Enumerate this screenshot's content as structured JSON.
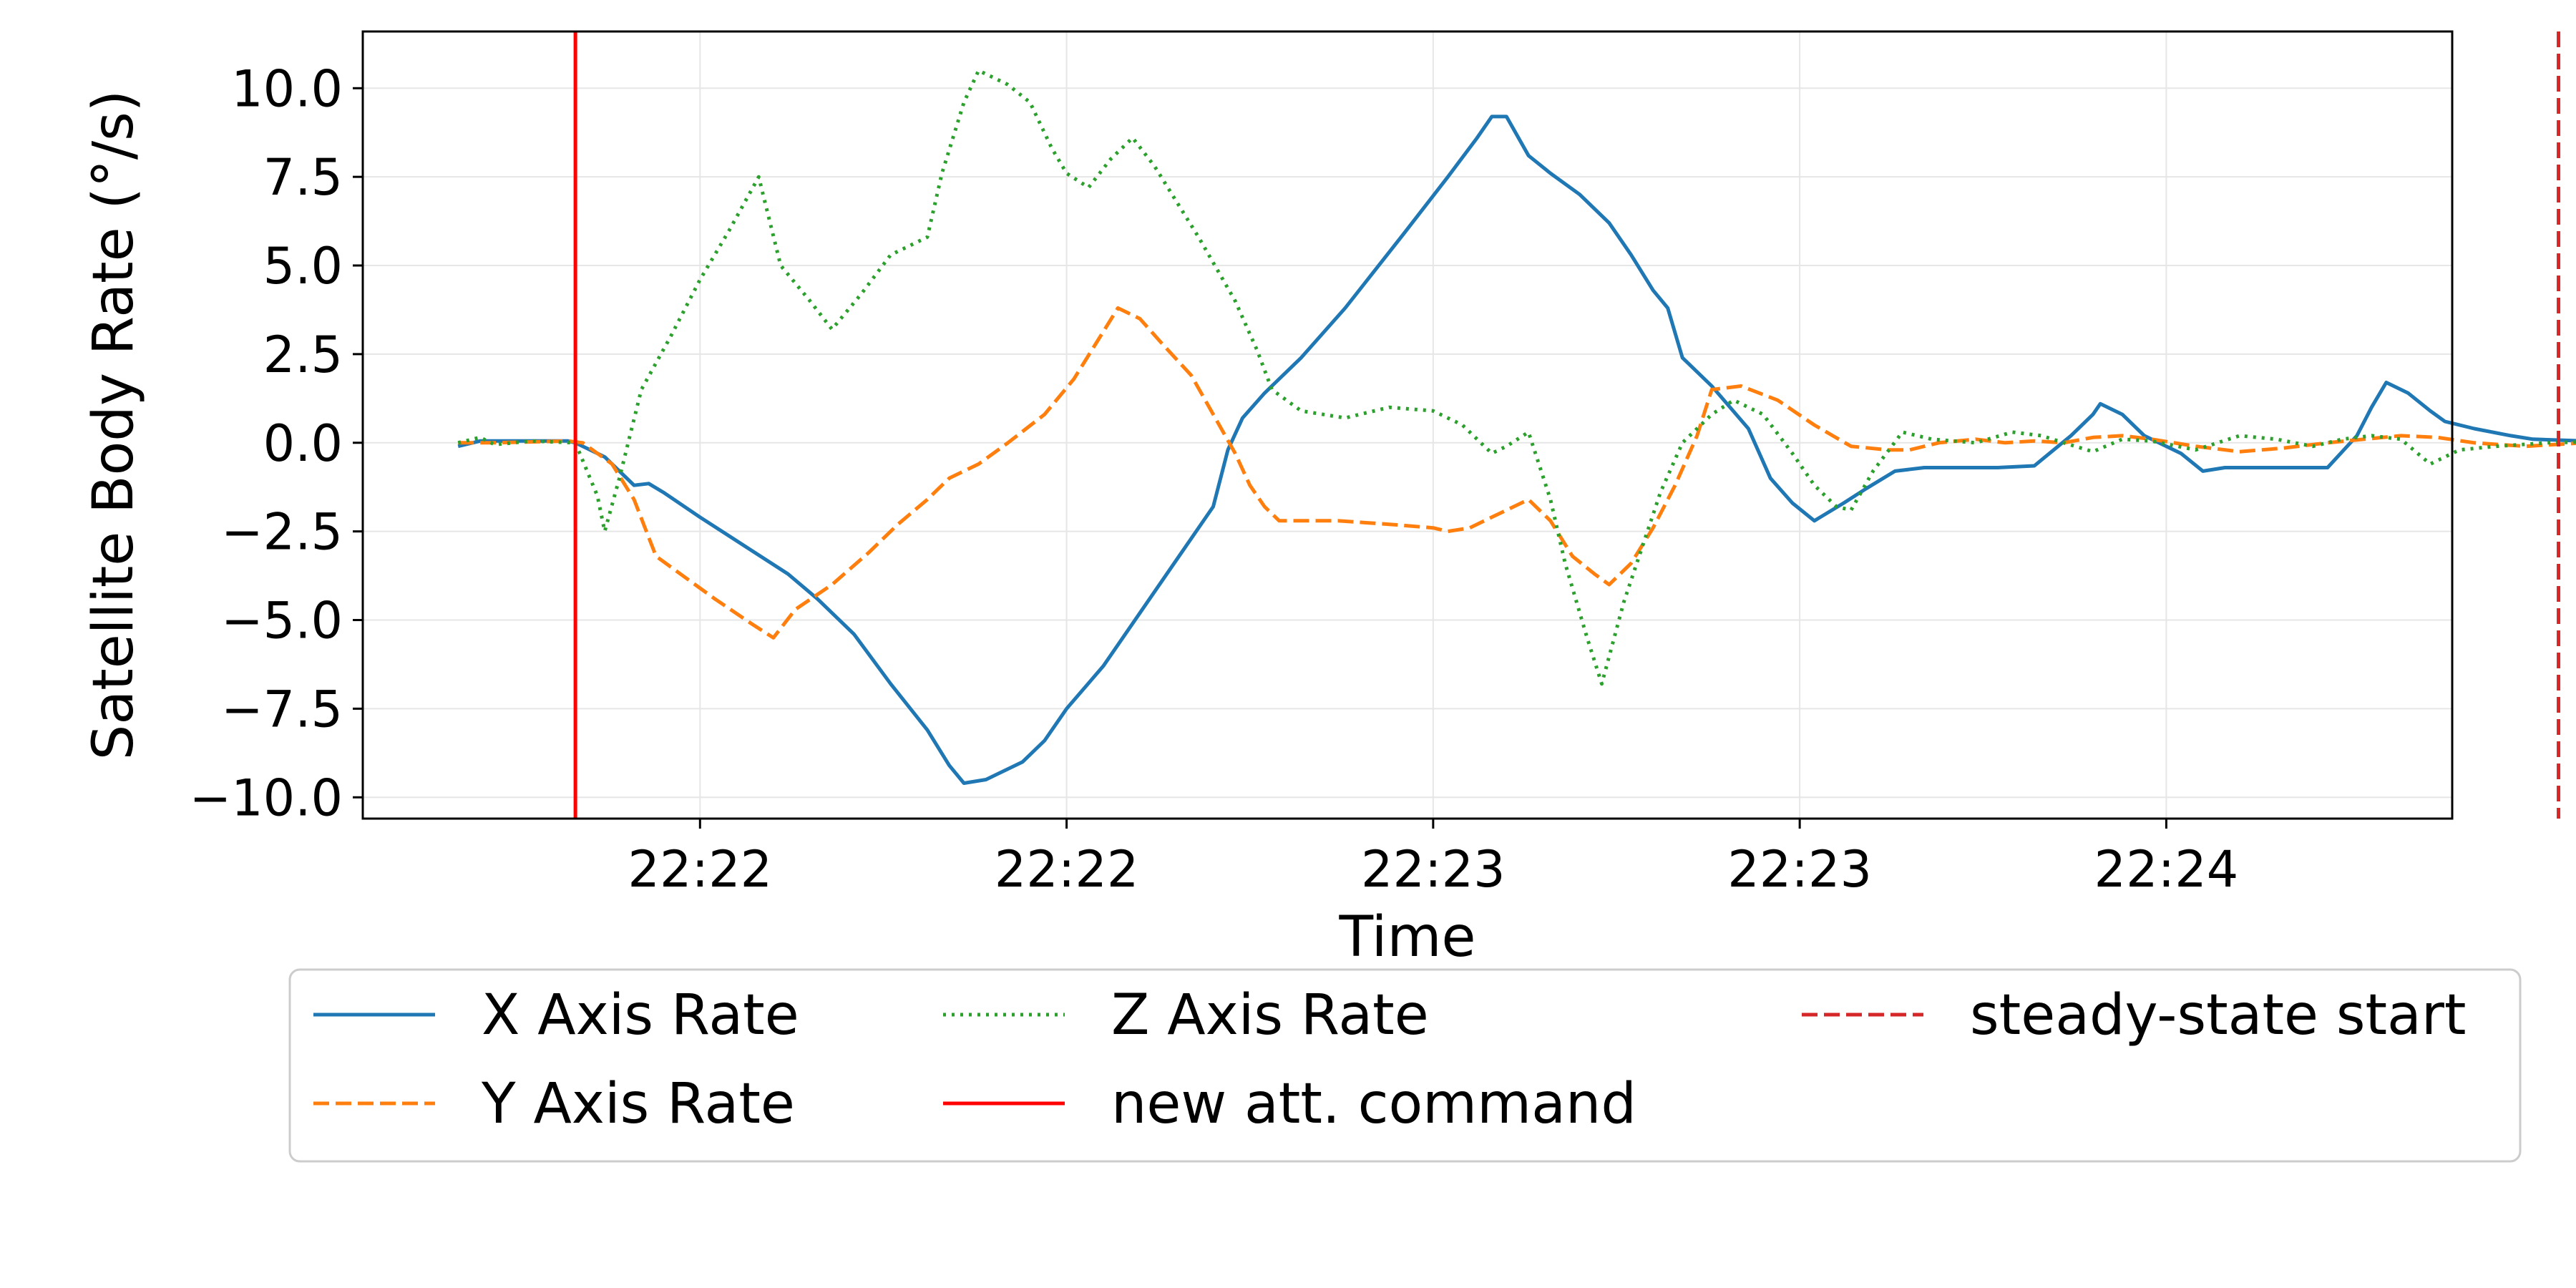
{
  "chart_data": {
    "type": "line",
    "xlabel": "Time",
    "ylabel": "Satellite Body Rate (°/s)",
    "xlim": [
      -80,
      2770
    ],
    "ylim": [
      -10.6,
      11.6
    ],
    "x_ticks": [
      {
        "x": 380,
        "label": "22:22"
      },
      {
        "x": 880,
        "label": "22:22"
      },
      {
        "x": 1380,
        "label": "22:23"
      },
      {
        "x": 1880,
        "label": "22:23"
      },
      {
        "x": 2380,
        "label": "22:24"
      }
    ],
    "y_ticks": [
      {
        "value": 10.0,
        "label": "10.0"
      },
      {
        "value": 7.5,
        "label": "7.5"
      },
      {
        "value": 5.0,
        "label": "5.0"
      },
      {
        "value": 2.5,
        "label": "2.5"
      },
      {
        "value": 0.0,
        "label": "0.0"
      },
      {
        "value": -2.5,
        "label": "−2.5"
      },
      {
        "value": -5.0,
        "label": "−5.0"
      },
      {
        "value": -7.5,
        "label": "−7.5"
      },
      {
        "value": -10.0,
        "label": "−10.0"
      }
    ],
    "grid": true,
    "legend_position": "bottom",
    "series": [
      {
        "name": "X Axis Rate",
        "color": "#1f77b4",
        "style": "solid",
        "points": [
          [
            50,
            -0.1
          ],
          [
            80,
            0.05
          ],
          [
            130,
            0.05
          ],
          [
            200,
            0.05
          ],
          [
            210,
            0.0
          ],
          [
            250,
            -0.4
          ],
          [
            290,
            -1.2
          ],
          [
            310,
            -1.15
          ],
          [
            330,
            -1.4
          ],
          [
            380,
            -2.1
          ],
          [
            440,
            -2.9
          ],
          [
            500,
            -3.7
          ],
          [
            540,
            -4.4
          ],
          [
            590,
            -5.4
          ],
          [
            640,
            -6.8
          ],
          [
            690,
            -8.1
          ],
          [
            720,
            -9.1
          ],
          [
            740,
            -9.6
          ],
          [
            770,
            -9.5
          ],
          [
            820,
            -9.0
          ],
          [
            850,
            -8.4
          ],
          [
            880,
            -7.5
          ],
          [
            930,
            -6.3
          ],
          [
            1080,
            -1.8
          ],
          [
            1100,
            -0.2
          ],
          [
            1120,
            0.7
          ],
          [
            1150,
            1.4
          ],
          [
            1200,
            2.4
          ],
          [
            1260,
            3.8
          ],
          [
            1340,
            5.9
          ],
          [
            1400,
            7.5
          ],
          [
            1440,
            8.6
          ],
          [
            1460,
            9.2
          ],
          [
            1480,
            9.2
          ],
          [
            1510,
            8.1
          ],
          [
            1540,
            7.6
          ],
          [
            1580,
            7.0
          ],
          [
            1620,
            6.2
          ],
          [
            1650,
            5.3
          ],
          [
            1680,
            4.3
          ],
          [
            1700,
            3.8
          ],
          [
            1720,
            2.4
          ],
          [
            1760,
            1.6
          ],
          [
            1810,
            0.4
          ],
          [
            1840,
            -1.0
          ],
          [
            1870,
            -1.7
          ],
          [
            1900,
            -2.2
          ],
          [
            1940,
            -1.7
          ],
          [
            1970,
            -1.3
          ],
          [
            2010,
            -0.8
          ],
          [
            2050,
            -0.7
          ],
          [
            2100,
            -0.7
          ],
          [
            2150,
            -0.7
          ],
          [
            2200,
            -0.65
          ],
          [
            2250,
            0.2
          ],
          [
            2280,
            0.8
          ],
          [
            2290,
            1.1
          ],
          [
            2320,
            0.8
          ],
          [
            2350,
            0.2
          ],
          [
            2400,
            -0.3
          ],
          [
            2430,
            -0.8
          ],
          [
            2460,
            -0.7
          ],
          [
            2500,
            -0.7
          ],
          [
            2550,
            -0.7
          ],
          [
            2600,
            -0.7
          ],
          [
            2640,
            0.2
          ],
          [
            2660,
            1.0
          ],
          [
            2680,
            1.7
          ],
          [
            2710,
            1.4
          ],
          [
            2740,
            0.9
          ],
          [
            2760,
            0.6
          ],
          [
            2800,
            0.4
          ],
          [
            2850,
            0.2
          ],
          [
            2880,
            0.1
          ],
          [
            2950,
            0.05
          ],
          [
            3000,
            0.05
          ],
          [
            3100,
            0.0
          ]
        ]
      },
      {
        "name": "Y Axis Rate",
        "color": "#ff7f0e",
        "style": "dashed",
        "points": [
          [
            50,
            0.0
          ],
          [
            100,
            0.0
          ],
          [
            200,
            0.05
          ],
          [
            220,
            0.0
          ],
          [
            260,
            -0.6
          ],
          [
            290,
            -1.6
          ],
          [
            320,
            -3.2
          ],
          [
            360,
            -3.8
          ],
          [
            400,
            -4.4
          ],
          [
            450,
            -5.1
          ],
          [
            480,
            -5.5
          ],
          [
            510,
            -4.7
          ],
          [
            560,
            -4.0
          ],
          [
            610,
            -3.1
          ],
          [
            650,
            -2.3
          ],
          [
            690,
            -1.6
          ],
          [
            720,
            -1.0
          ],
          [
            760,
            -0.6
          ],
          [
            800,
            0.0
          ],
          [
            850,
            0.8
          ],
          [
            890,
            1.8
          ],
          [
            920,
            2.8
          ],
          [
            950,
            3.8
          ],
          [
            980,
            3.5
          ],
          [
            1010,
            2.8
          ],
          [
            1050,
            1.9
          ],
          [
            1080,
            0.8
          ],
          [
            1110,
            -0.3
          ],
          [
            1130,
            -1.2
          ],
          [
            1150,
            -1.8
          ],
          [
            1170,
            -2.2
          ],
          [
            1250,
            -2.2
          ],
          [
            1320,
            -2.3
          ],
          [
            1380,
            -2.4
          ],
          [
            1400,
            -2.5
          ],
          [
            1430,
            -2.4
          ],
          [
            1460,
            -2.1
          ],
          [
            1490,
            -1.8
          ],
          [
            1510,
            -1.6
          ],
          [
            1540,
            -2.2
          ],
          [
            1570,
            -3.2
          ],
          [
            1600,
            -3.7
          ],
          [
            1620,
            -4.0
          ],
          [
            1650,
            -3.4
          ],
          [
            1680,
            -2.4
          ],
          [
            1710,
            -1.2
          ],
          [
            1740,
            0.2
          ],
          [
            1760,
            1.5
          ],
          [
            1800,
            1.6
          ],
          [
            1850,
            1.2
          ],
          [
            1900,
            0.5
          ],
          [
            1950,
            -0.1
          ],
          [
            2000,
            -0.2
          ],
          [
            2030,
            -0.2
          ],
          [
            2070,
            0.0
          ],
          [
            2120,
            0.1
          ],
          [
            2160,
            0.0
          ],
          [
            2200,
            0.05
          ],
          [
            2240,
            0.0
          ],
          [
            2280,
            0.15
          ],
          [
            2320,
            0.2
          ],
          [
            2360,
            0.1
          ],
          [
            2420,
            -0.1
          ],
          [
            2480,
            -0.25
          ],
          [
            2540,
            -0.15
          ],
          [
            2600,
            0.0
          ],
          [
            2650,
            0.1
          ],
          [
            2700,
            0.2
          ],
          [
            2750,
            0.15
          ],
          [
            2800,
            0.0
          ],
          [
            2870,
            -0.1
          ],
          [
            2950,
            0.0
          ],
          [
            3100,
            0.0
          ]
        ]
      },
      {
        "name": "Z Axis Rate",
        "color": "#2ca02c",
        "style": "dotted",
        "points": [
          [
            50,
            0.0
          ],
          [
            80,
            0.15
          ],
          [
            100,
            -0.05
          ],
          [
            150,
            0.05
          ],
          [
            210,
            0.0
          ],
          [
            240,
            -1.5
          ],
          [
            250,
            -2.5
          ],
          [
            270,
            -1.0
          ],
          [
            300,
            1.5
          ],
          [
            340,
            3.0
          ],
          [
            380,
            4.6
          ],
          [
            420,
            6.0
          ],
          [
            460,
            7.5
          ],
          [
            490,
            5.0
          ],
          [
            530,
            4.0
          ],
          [
            560,
            3.2
          ],
          [
            600,
            4.2
          ],
          [
            640,
            5.3
          ],
          [
            690,
            5.8
          ],
          [
            710,
            7.6
          ],
          [
            740,
            9.6
          ],
          [
            760,
            10.5
          ],
          [
            800,
            10.1
          ],
          [
            830,
            9.6
          ],
          [
            860,
            8.3
          ],
          [
            880,
            7.6
          ],
          [
            910,
            7.2
          ],
          [
            940,
            8.0
          ],
          [
            970,
            8.6
          ],
          [
            1000,
            7.8
          ],
          [
            1060,
            5.8
          ],
          [
            1110,
            4.0
          ],
          [
            1140,
            2.6
          ],
          [
            1160,
            1.5
          ],
          [
            1200,
            0.9
          ],
          [
            1260,
            0.7
          ],
          [
            1320,
            1.0
          ],
          [
            1380,
            0.9
          ],
          [
            1420,
            0.5
          ],
          [
            1460,
            -0.3
          ],
          [
            1480,
            -0.1
          ],
          [
            1510,
            0.3
          ],
          [
            1540,
            -1.6
          ],
          [
            1560,
            -3.4
          ],
          [
            1590,
            -5.5
          ],
          [
            1610,
            -6.8
          ],
          [
            1640,
            -4.5
          ],
          [
            1690,
            -1.4
          ],
          [
            1720,
            0.0
          ],
          [
            1760,
            0.8
          ],
          [
            1790,
            1.2
          ],
          [
            1830,
            0.8
          ],
          [
            1870,
            -0.3
          ],
          [
            1900,
            -1.2
          ],
          [
            1930,
            -1.8
          ],
          [
            1950,
            -1.9
          ],
          [
            1980,
            -0.8
          ],
          [
            2020,
            0.3
          ],
          [
            2060,
            0.1
          ],
          [
            2120,
            0.0
          ],
          [
            2170,
            0.3
          ],
          [
            2210,
            0.2
          ],
          [
            2240,
            0.0
          ],
          [
            2280,
            -0.25
          ],
          [
            2320,
            0.1
          ],
          [
            2360,
            0.05
          ],
          [
            2420,
            -0.2
          ],
          [
            2480,
            0.2
          ],
          [
            2530,
            0.1
          ],
          [
            2580,
            -0.1
          ],
          [
            2620,
            0.1
          ],
          [
            2660,
            0.2
          ],
          [
            2700,
            0.1
          ],
          [
            2740,
            -0.6
          ],
          [
            2780,
            -0.2
          ],
          [
            2830,
            -0.1
          ],
          [
            2900,
            0.0
          ],
          [
            3000,
            0.05
          ],
          [
            3100,
            0.0
          ]
        ]
      }
    ],
    "vlines": [
      {
        "name": "new att. command",
        "x": 210,
        "color": "#ff0000",
        "style": "solid"
      },
      {
        "name": "steady-state start",
        "x": 2915,
        "color": "#d62728",
        "style": "dashed"
      }
    ],
    "legend_columns": [
      [
        "X Axis Rate",
        "Y Axis Rate"
      ],
      [
        "Z Axis Rate",
        "new att. command"
      ],
      [
        "steady-state start"
      ]
    ]
  }
}
